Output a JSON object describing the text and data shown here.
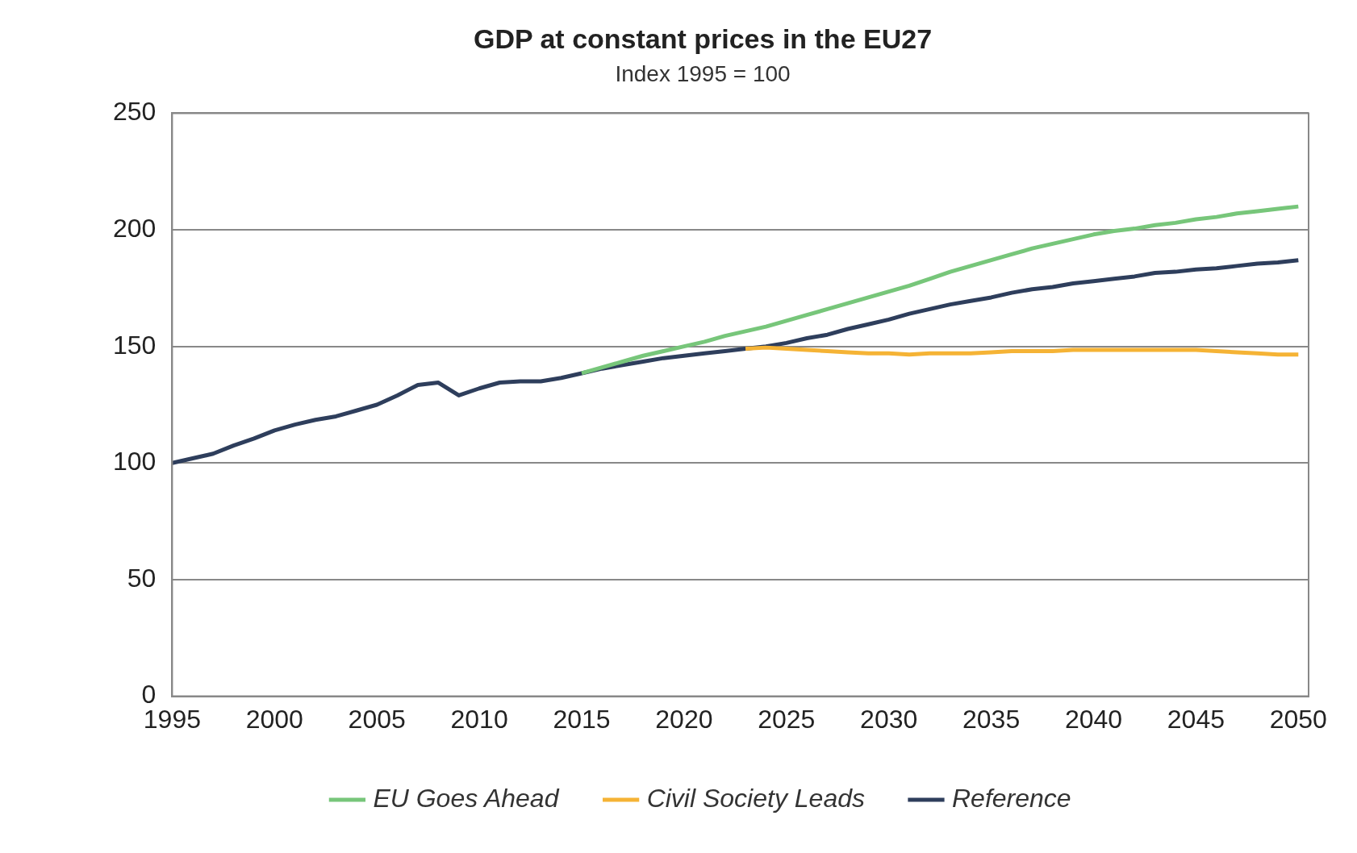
{
  "chart_data": {
    "type": "line",
    "title": "GDP at constant prices in the EU27",
    "subtitle": "Index 1995 = 100",
    "x": [
      1995,
      1996,
      1997,
      1998,
      1999,
      2000,
      2001,
      2002,
      2003,
      2004,
      2005,
      2006,
      2007,
      2008,
      2009,
      2010,
      2011,
      2012,
      2013,
      2014,
      2015,
      2016,
      2017,
      2018,
      2019,
      2020,
      2021,
      2022,
      2023,
      2024,
      2025,
      2026,
      2027,
      2028,
      2029,
      2030,
      2031,
      2032,
      2033,
      2034,
      2035,
      2036,
      2037,
      2038,
      2039,
      2040,
      2041,
      2042,
      2043,
      2044,
      2045,
      2046,
      2047,
      2048,
      2049,
      2050
    ],
    "series": [
      {
        "name": "EU Goes Ahead",
        "color": "#77c67a",
        "values": [
          null,
          null,
          null,
          null,
          null,
          null,
          null,
          null,
          null,
          null,
          null,
          null,
          null,
          null,
          null,
          null,
          null,
          null,
          null,
          null,
          138.5,
          141,
          143.5,
          146,
          148,
          150,
          152,
          154.5,
          156.5,
          158.5,
          161,
          163.5,
          166,
          168.5,
          171,
          173.5,
          176,
          179,
          182,
          184.5,
          187,
          189.5,
          192,
          194,
          196,
          198,
          199.5,
          200.5,
          202,
          203,
          204.5,
          205.5,
          207,
          208,
          209,
          210
        ]
      },
      {
        "name": "Civil Society Leads",
        "color": "#f5b335",
        "values": [
          null,
          null,
          null,
          null,
          null,
          null,
          null,
          null,
          null,
          null,
          null,
          null,
          null,
          null,
          null,
          null,
          null,
          null,
          null,
          null,
          null,
          null,
          null,
          null,
          null,
          null,
          null,
          null,
          149,
          149.5,
          149,
          148.5,
          148,
          147.5,
          147,
          147,
          146.5,
          147,
          147,
          147,
          147.5,
          148,
          148,
          148,
          148.5,
          148.5,
          148.5,
          148.5,
          148.5,
          148.5,
          148.5,
          148,
          147.5,
          147,
          146.5,
          146.5
        ]
      },
      {
        "name": "Reference",
        "color": "#2e3e5c",
        "values": [
          100,
          102,
          104,
          107.5,
          110.5,
          114,
          116.5,
          118.5,
          120,
          122.5,
          125,
          129,
          133.5,
          134.5,
          129,
          132,
          134.5,
          135,
          135,
          136.5,
          138.5,
          140.5,
          142,
          143.5,
          145,
          146,
          147,
          148,
          149,
          150,
          151.5,
          153.5,
          155,
          157.5,
          159.5,
          161.5,
          164,
          166,
          168,
          169.5,
          171,
          173,
          174.5,
          175.5,
          177,
          178,
          179,
          180,
          181.5,
          182,
          183,
          183.5,
          184.5,
          185.5,
          186,
          187
        ]
      }
    ],
    "xlim": [
      1995,
      2050.5
    ],
    "xticks": [
      1995,
      2000,
      2005,
      2010,
      2015,
      2020,
      2025,
      2030,
      2035,
      2040,
      2045,
      2050
    ],
    "ylim": [
      0,
      250
    ],
    "yticks": [
      0,
      50,
      100,
      150,
      200,
      250
    ],
    "grid": "y",
    "legend": "bottom",
    "marker": "none",
    "line_style": "solid"
  }
}
